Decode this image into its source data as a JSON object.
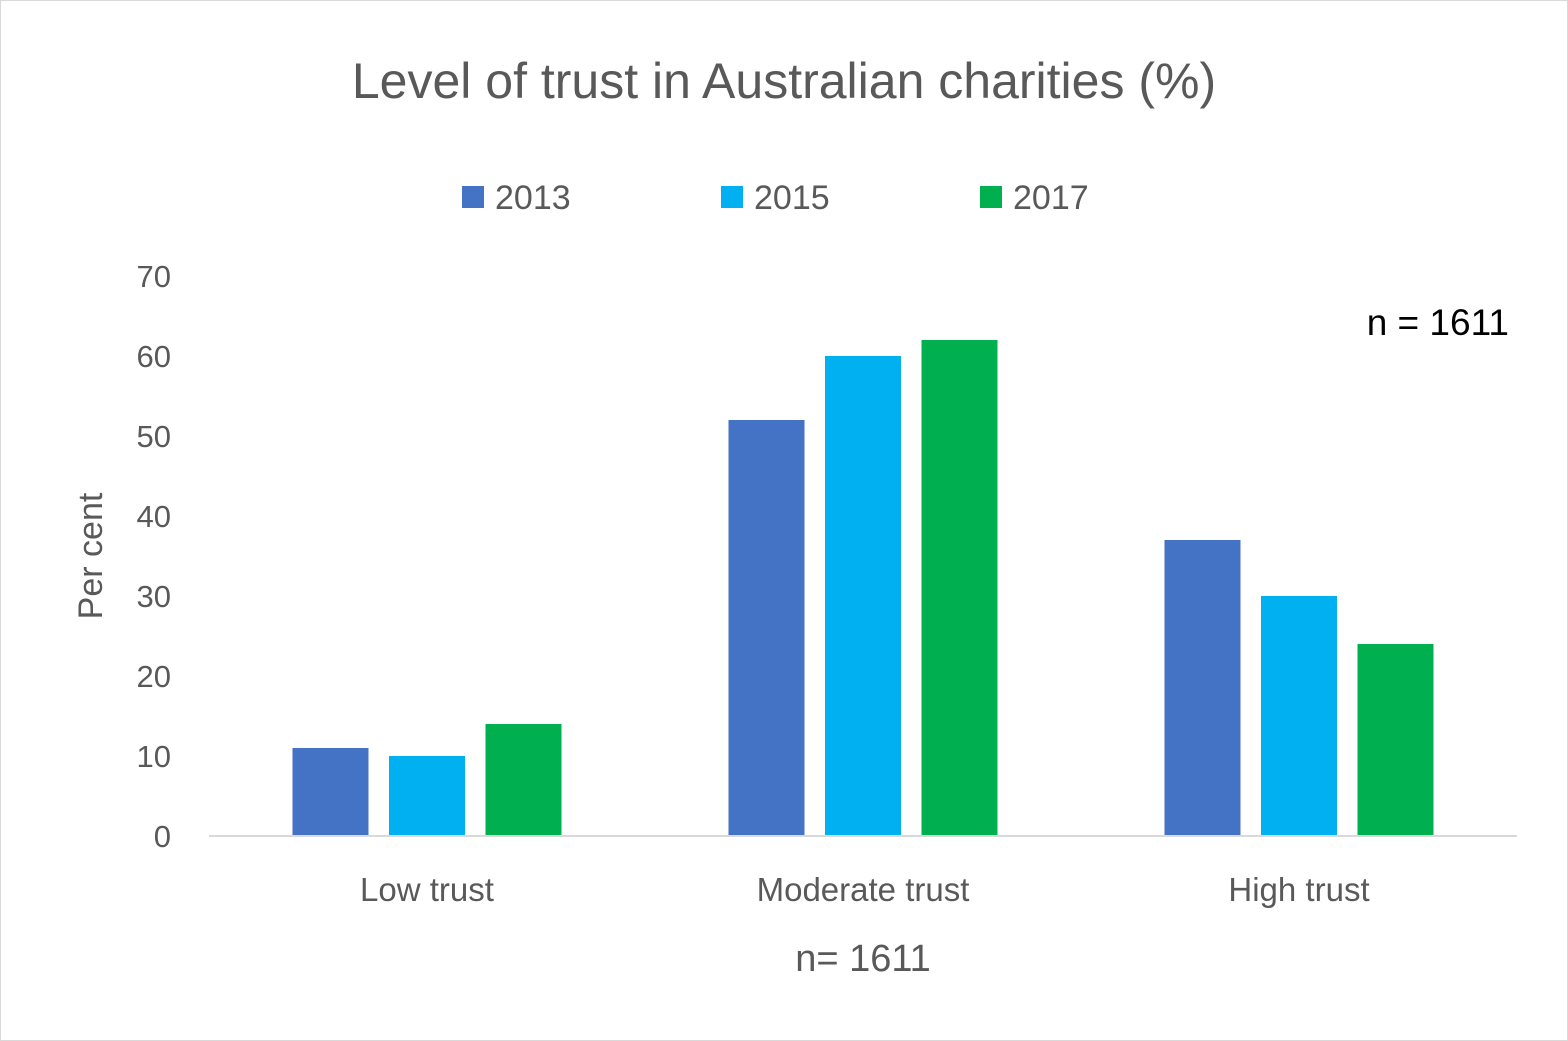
{
  "chart_data": {
    "type": "bar",
    "title": "Level of trust in Australian charities (%)",
    "xlabel": "n= 1611",
    "ylabel": "Per cent",
    "ylim": [
      0,
      70
    ],
    "yticks": [
      0,
      10,
      20,
      30,
      40,
      50,
      60,
      70
    ],
    "categories": [
      "Low trust",
      "Moderate trust",
      "High trust"
    ],
    "series": [
      {
        "name": "2013",
        "color": "#4472C4",
        "values": [
          11,
          52,
          37
        ]
      },
      {
        "name": "2015",
        "color": "#00B0F0",
        "values": [
          10,
          60,
          30
        ]
      },
      {
        "name": "2017",
        "color": "#00B050",
        "values": [
          14,
          62,
          24
        ]
      }
    ],
    "legend_position": "top",
    "grid": false,
    "annotation": "n = 1611",
    "axis_color": "#d9d9d9"
  }
}
